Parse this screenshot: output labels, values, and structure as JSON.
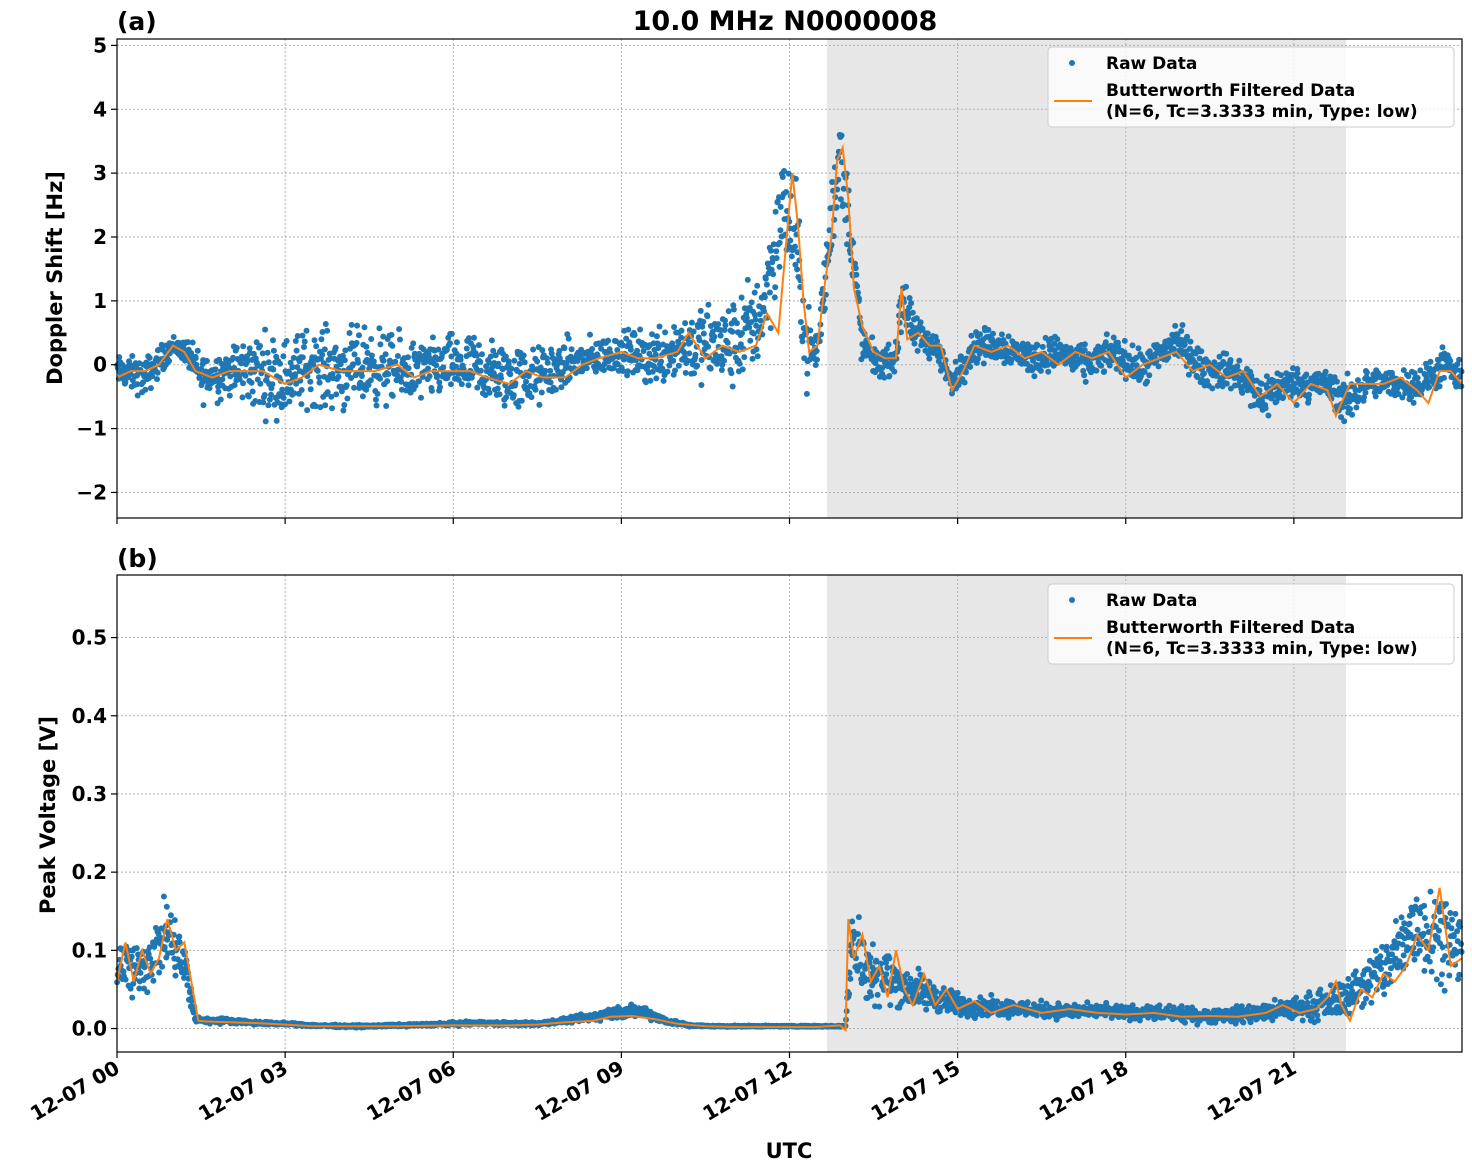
{
  "figure": {
    "title": "10.0 MHz N0000008",
    "xlabel": "UTC"
  },
  "legend": {
    "raw_label": "Raw Data",
    "filtered_label_line1": "Butterworth Filtered Data",
    "filtered_label_line2": "(N=6, Tc=3.3333 min, Type: low)"
  },
  "colors": {
    "raw": "#1f77b4",
    "filtered": "#ff7f0e",
    "shade": "#e7e7e7",
    "grid": "#b0b0b0"
  },
  "chart_data": [
    {
      "type": "scatter",
      "panel_label": "(a)",
      "ylabel": "Doppler Shift [Hz]",
      "xlim_hours": [
        0,
        24
      ],
      "ylim": [
        -2.4,
        5.1
      ],
      "yticks": [
        -2,
        -1,
        0,
        1,
        2,
        3,
        4,
        5
      ],
      "ytick_labels": [
        "−2",
        "−1",
        "0",
        "1",
        "2",
        "3",
        "4",
        "5"
      ],
      "shaded_span_hours": [
        12.67,
        21.93
      ],
      "grid": true,
      "legend_position": "top-right",
      "series": [
        {
          "name": "Raw Data",
          "style": "dots",
          "x_hours": [
            0,
            0.5,
            1.0,
            1.25,
            1.5,
            2.0,
            2.5,
            3.0,
            3.5,
            4.0,
            4.5,
            5.0,
            5.5,
            6.0,
            6.5,
            7.0,
            7.5,
            8.0,
            8.5,
            9.0,
            9.5,
            10.0,
            10.5,
            11.0,
            11.5,
            11.9,
            12.1,
            12.3,
            12.5,
            12.67,
            12.8,
            12.9,
            13.1,
            13.3,
            13.6,
            13.9,
            14.0,
            14.2,
            14.6,
            14.9,
            15.3,
            15.8,
            16.3,
            16.8,
            17.3,
            17.8,
            18.3,
            18.9,
            19.4,
            19.9,
            20.4,
            20.9,
            21.2,
            21.6,
            21.9,
            22.3,
            22.8,
            23.3,
            23.7,
            24.0
          ],
          "y_center": [
            -0.1,
            -0.2,
            0.3,
            0.2,
            -0.2,
            -0.1,
            -0.1,
            -0.2,
            0.0,
            -0.1,
            0.0,
            -0.1,
            -0.1,
            0.0,
            -0.1,
            -0.2,
            -0.2,
            0.0,
            0.1,
            0.2,
            0.1,
            0.3,
            0.3,
            0.3,
            0.8,
            2.5,
            2.0,
            0.3,
            0.2,
            1.6,
            2.8,
            3.2,
            2.0,
            0.3,
            0.0,
            0.1,
            1.1,
            0.5,
            0.3,
            -0.3,
            0.3,
            0.3,
            0.1,
            0.2,
            0.0,
            0.2,
            -0.1,
            0.4,
            -0.1,
            -0.1,
            -0.5,
            -0.3,
            -0.3,
            -0.3,
            -0.6,
            -0.3,
            -0.3,
            -0.3,
            0.0,
            -0.3
          ],
          "spread": [
            0.3,
            0.4,
            0.2,
            0.25,
            0.5,
            0.5,
            0.8,
            0.8,
            0.8,
            0.8,
            0.8,
            0.7,
            0.6,
            0.6,
            0.7,
            0.7,
            0.6,
            0.5,
            0.4,
            0.4,
            0.6,
            0.7,
            0.8,
            0.9,
            1.0,
            1.2,
            1.2,
            0.8,
            0.6,
            0.8,
            1.0,
            1.0,
            0.8,
            0.4,
            0.3,
            0.3,
            0.8,
            0.4,
            0.3,
            0.3,
            0.35,
            0.35,
            0.35,
            0.35,
            0.35,
            0.35,
            0.35,
            0.4,
            0.35,
            0.35,
            0.5,
            0.35,
            0.35,
            0.3,
            0.5,
            0.3,
            0.3,
            0.35,
            0.35,
            0.35
          ]
        },
        {
          "name": "Butterworth Filtered Data",
          "style": "line",
          "x_hours": [
            0,
            0.25,
            0.5,
            0.75,
            1.0,
            1.2,
            1.4,
            1.7,
            2.0,
            2.3,
            2.6,
            3.0,
            3.3,
            3.6,
            4.0,
            4.3,
            4.6,
            5.0,
            5.3,
            5.6,
            6.0,
            6.3,
            6.6,
            7.0,
            7.3,
            7.6,
            8.0,
            8.3,
            8.6,
            9.0,
            9.3,
            9.6,
            10.0,
            10.2,
            10.5,
            10.8,
            11.1,
            11.4,
            11.6,
            11.8,
            11.95,
            12.05,
            12.15,
            12.25,
            12.35,
            12.5,
            12.65,
            12.75,
            12.85,
            12.95,
            13.05,
            13.15,
            13.3,
            13.5,
            13.7,
            13.9,
            14.0,
            14.1,
            14.3,
            14.5,
            14.7,
            14.9,
            15.1,
            15.3,
            15.6,
            15.9,
            16.2,
            16.5,
            16.8,
            17.1,
            17.4,
            17.7,
            18.0,
            18.3,
            18.6,
            18.9,
            19.2,
            19.5,
            19.8,
            20.1,
            20.4,
            20.7,
            21.0,
            21.3,
            21.6,
            21.75,
            21.85,
            22.0,
            22.3,
            22.6,
            22.9,
            23.2,
            23.4,
            23.6,
            23.8,
            24.0
          ],
          "y": [
            -0.2,
            -0.1,
            -0.1,
            0.0,
            0.3,
            0.2,
            -0.1,
            -0.2,
            -0.1,
            -0.1,
            -0.1,
            -0.3,
            -0.2,
            0.0,
            -0.1,
            -0.1,
            -0.1,
            0.0,
            -0.2,
            -0.1,
            -0.1,
            -0.1,
            -0.2,
            -0.3,
            -0.1,
            -0.2,
            -0.2,
            0.0,
            0.1,
            0.2,
            0.1,
            0.1,
            0.2,
            0.5,
            0.1,
            0.3,
            0.2,
            0.3,
            0.8,
            0.5,
            2.0,
            3.0,
            2.2,
            1.0,
            0.2,
            0.3,
            1.4,
            2.0,
            3.2,
            3.4,
            2.6,
            1.2,
            0.6,
            0.2,
            0.1,
            0.1,
            1.2,
            0.4,
            0.5,
            0.3,
            0.3,
            -0.4,
            -0.1,
            0.3,
            0.2,
            0.3,
            0.1,
            0.2,
            0.0,
            0.2,
            0.1,
            0.2,
            -0.2,
            0.0,
            0.1,
            0.2,
            -0.1,
            0.0,
            -0.2,
            -0.1,
            -0.5,
            -0.3,
            -0.6,
            -0.3,
            -0.4,
            -0.8,
            -0.6,
            -0.3,
            -0.3,
            -0.3,
            -0.2,
            -0.4,
            -0.6,
            -0.1,
            -0.1,
            -0.3
          ]
        }
      ]
    },
    {
      "type": "scatter",
      "panel_label": "(b)",
      "ylabel": "Peak Voltage [V]",
      "xlim_hours": [
        0,
        24
      ],
      "ylim": [
        -0.03,
        0.58
      ],
      "yticks": [
        0.0,
        0.1,
        0.2,
        0.3,
        0.4,
        0.5
      ],
      "ytick_labels": [
        "0.0",
        "0.1",
        "0.2",
        "0.3",
        "0.4",
        "0.5"
      ],
      "shaded_span_hours": [
        12.67,
        21.93
      ],
      "grid": true,
      "legend_position": "top-right",
      "xticks_hours": [
        0,
        3,
        6,
        9,
        12,
        15,
        18,
        21
      ],
      "xtick_labels": [
        "12-07 00",
        "12-07 03",
        "12-07 06",
        "12-07 09",
        "12-07 12",
        "12-07 15",
        "12-07 18",
        "12-07 21"
      ],
      "series": [
        {
          "name": "Raw Data",
          "style": "dots",
          "x_hours": [
            0,
            0.3,
            0.6,
            0.9,
            1.2,
            1.4,
            1.6,
            2.0,
            2.5,
            3.0,
            3.5,
            4.0,
            4.5,
            5.0,
            5.5,
            6.0,
            6.5,
            7.0,
            7.5,
            8.0,
            8.5,
            9.0,
            9.4,
            9.8,
            10.2,
            10.6,
            11.0,
            11.5,
            12.0,
            12.4,
            12.7,
            13.0,
            13.1,
            13.3,
            13.6,
            13.9,
            14.2,
            14.6,
            15.0,
            15.5,
            16.0,
            16.5,
            17.0,
            17.5,
            18.0,
            18.5,
            19.0,
            19.5,
            20.0,
            20.5,
            21.0,
            21.5,
            21.9,
            22.2,
            22.5,
            22.8,
            23.1,
            23.4,
            23.7,
            24.0
          ],
          "y_center": [
            0.09,
            0.07,
            0.09,
            0.12,
            0.08,
            0.012,
            0.01,
            0.01,
            0.007,
            0.006,
            0.004,
            0.003,
            0.003,
            0.004,
            0.005,
            0.006,
            0.007,
            0.006,
            0.006,
            0.01,
            0.015,
            0.022,
            0.022,
            0.01,
            0.004,
            0.003,
            0.003,
            0.003,
            0.003,
            0.003,
            0.003,
            0.003,
            0.12,
            0.08,
            0.07,
            0.06,
            0.05,
            0.04,
            0.03,
            0.028,
            0.026,
            0.024,
            0.022,
            0.022,
            0.02,
            0.02,
            0.018,
            0.016,
            0.018,
            0.02,
            0.025,
            0.03,
            0.04,
            0.055,
            0.07,
            0.09,
            0.13,
            0.13,
            0.12,
            0.1
          ],
          "spread": [
            0.05,
            0.05,
            0.05,
            0.06,
            0.05,
            0.006,
            0.005,
            0.004,
            0.003,
            0.002,
            0.002,
            0.002,
            0.002,
            0.002,
            0.002,
            0.003,
            0.003,
            0.003,
            0.003,
            0.004,
            0.008,
            0.012,
            0.01,
            0.005,
            0.002,
            0.001,
            0.001,
            0.001,
            0.001,
            0.001,
            0.001,
            0.001,
            0.08,
            0.06,
            0.05,
            0.04,
            0.035,
            0.025,
            0.02,
            0.016,
            0.014,
            0.014,
            0.012,
            0.012,
            0.012,
            0.012,
            0.012,
            0.012,
            0.014,
            0.016,
            0.02,
            0.025,
            0.03,
            0.04,
            0.05,
            0.06,
            0.08,
            0.08,
            0.07,
            0.06
          ]
        },
        {
          "name": "Butterworth Filtered Data",
          "style": "line",
          "x_hours": [
            0,
            0.15,
            0.3,
            0.45,
            0.6,
            0.75,
            0.9,
            1.05,
            1.2,
            1.35,
            1.45,
            1.6,
            2.0,
            2.5,
            3.0,
            3.5,
            4.0,
            5.0,
            6.0,
            7.0,
            7.5,
            8.0,
            8.5,
            8.8,
            9.2,
            9.6,
            10.0,
            10.5,
            11.0,
            12.0,
            12.5,
            12.9,
            13.0,
            13.05,
            13.15,
            13.3,
            13.45,
            13.6,
            13.75,
            13.9,
            14.05,
            14.2,
            14.4,
            14.6,
            14.8,
            15.0,
            15.3,
            15.6,
            16.0,
            16.5,
            17.0,
            17.5,
            18.0,
            18.5,
            19.0,
            19.5,
            20.0,
            20.5,
            20.8,
            21.1,
            21.4,
            21.6,
            21.75,
            21.85,
            22.0,
            22.2,
            22.4,
            22.6,
            22.8,
            23.0,
            23.2,
            23.4,
            23.6,
            23.8,
            24.0
          ],
          "y": [
            0.06,
            0.11,
            0.06,
            0.1,
            0.07,
            0.09,
            0.14,
            0.1,
            0.11,
            0.05,
            0.01,
            0.009,
            0.008,
            0.007,
            0.005,
            0.003,
            0.003,
            0.003,
            0.004,
            0.004,
            0.005,
            0.008,
            0.01,
            0.015,
            0.016,
            0.012,
            0.006,
            0.003,
            0.002,
            0.002,
            0.002,
            0.004,
            -0.002,
            0.14,
            0.09,
            0.12,
            0.06,
            0.08,
            0.04,
            0.1,
            0.05,
            0.03,
            0.07,
            0.03,
            0.05,
            0.025,
            0.035,
            0.02,
            0.03,
            0.02,
            0.025,
            0.02,
            0.018,
            0.02,
            0.015,
            0.016,
            0.015,
            0.02,
            0.03,
            0.02,
            0.025,
            0.04,
            0.06,
            0.03,
            0.01,
            0.05,
            0.04,
            0.07,
            0.06,
            0.08,
            0.12,
            0.1,
            0.18,
            0.08,
            0.09
          ]
        }
      ]
    }
  ]
}
